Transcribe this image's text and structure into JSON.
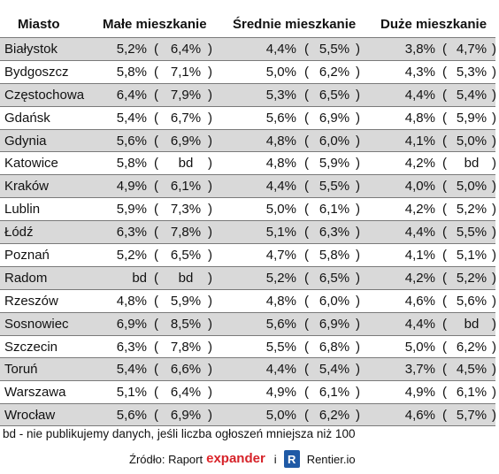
{
  "headers": {
    "city": "Miasto",
    "small": "Małe mieszkanie",
    "medium": "Średnie mieszkanie",
    "large": "Duże mieszkanie"
  },
  "rows": [
    {
      "city": "Białystok",
      "small": "5,2%",
      "small_prev": "6,4%",
      "medium": "4,4%",
      "medium_prev": "5,5%",
      "large": "3,8%",
      "large_prev": "4,7%"
    },
    {
      "city": "Bydgoszcz",
      "small": "5,8%",
      "small_prev": "7,1%",
      "medium": "5,0%",
      "medium_prev": "6,2%",
      "large": "4,3%",
      "large_prev": "5,3%"
    },
    {
      "city": "Częstochowa",
      "small": "6,4%",
      "small_prev": "7,9%",
      "medium": "5,3%",
      "medium_prev": "6,5%",
      "large": "4,4%",
      "large_prev": "5,4%"
    },
    {
      "city": "Gdańsk",
      "small": "5,4%",
      "small_prev": "6,7%",
      "medium": "5,6%",
      "medium_prev": "6,9%",
      "large": "4,8%",
      "large_prev": "5,9%"
    },
    {
      "city": "Gdynia",
      "small": "5,6%",
      "small_prev": "6,9%",
      "medium": "4,8%",
      "medium_prev": "6,0%",
      "large": "4,1%",
      "large_prev": "5,0%"
    },
    {
      "city": "Katowice",
      "small": "5,8%",
      "small_prev": "bd",
      "medium": "4,8%",
      "medium_prev": "5,9%",
      "large": "4,2%",
      "large_prev": "bd"
    },
    {
      "city": "Kraków",
      "small": "4,9%",
      "small_prev": "6,1%",
      "medium": "4,4%",
      "medium_prev": "5,5%",
      "large": "4,0%",
      "large_prev": "5,0%"
    },
    {
      "city": "Lublin",
      "small": "5,9%",
      "small_prev": "7,3%",
      "medium": "5,0%",
      "medium_prev": "6,1%",
      "large": "4,2%",
      "large_prev": "5,2%"
    },
    {
      "city": "Łódź",
      "small": "6,3%",
      "small_prev": "7,8%",
      "medium": "5,1%",
      "medium_prev": "6,3%",
      "large": "4,4%",
      "large_prev": "5,5%"
    },
    {
      "city": "Poznań",
      "small": "5,2%",
      "small_prev": "6,5%",
      "medium": "4,7%",
      "medium_prev": "5,8%",
      "large": "4,1%",
      "large_prev": "5,1%"
    },
    {
      "city": "Radom",
      "small": "bd",
      "small_prev": "bd",
      "medium": "5,2%",
      "medium_prev": "6,5%",
      "large": "4,2%",
      "large_prev": "5,2%"
    },
    {
      "city": "Rzeszów",
      "small": "4,8%",
      "small_prev": "5,9%",
      "medium": "4,8%",
      "medium_prev": "6,0%",
      "large": "4,6%",
      "large_prev": "5,6%"
    },
    {
      "city": "Sosnowiec",
      "small": "6,9%",
      "small_prev": "8,5%",
      "medium": "5,6%",
      "medium_prev": "6,9%",
      "large": "4,4%",
      "large_prev": "bd"
    },
    {
      "city": "Szczecin",
      "small": "6,3%",
      "small_prev": "7,8%",
      "medium": "5,5%",
      "medium_prev": "6,8%",
      "large": "5,0%",
      "large_prev": "6,2%"
    },
    {
      "city": "Toruń",
      "small": "5,4%",
      "small_prev": "6,6%",
      "medium": "4,4%",
      "medium_prev": "5,4%",
      "large": "3,7%",
      "large_prev": "4,5%"
    },
    {
      "city": "Warszawa",
      "small": "5,1%",
      "small_prev": "6,4%",
      "medium": "4,9%",
      "medium_prev": "6,1%",
      "large": "4,9%",
      "large_prev": "6,1%"
    },
    {
      "city": "Wrocław",
      "small": "5,6%",
      "small_prev": "6,9%",
      "medium": "5,0%",
      "medium_prev": "6,2%",
      "large": "4,6%",
      "large_prev": "5,7%"
    }
  ],
  "paren_open": "(",
  "paren_close": ")",
  "footnote": "bd - nie publikujemy danych, jeśli liczba ogłoszeń mniejsza niż 100",
  "source": {
    "label": "Źródło: Raport",
    "expander_e": "e",
    "expander_rest": "xpander",
    "separator": "i",
    "rentier_badge": "R",
    "rentier_name": "Rentier.io"
  },
  "colors": {
    "shaded_row": "#d9d9d9",
    "expander_red": "#d62229",
    "rentier_blue": "#1f5aa6"
  }
}
